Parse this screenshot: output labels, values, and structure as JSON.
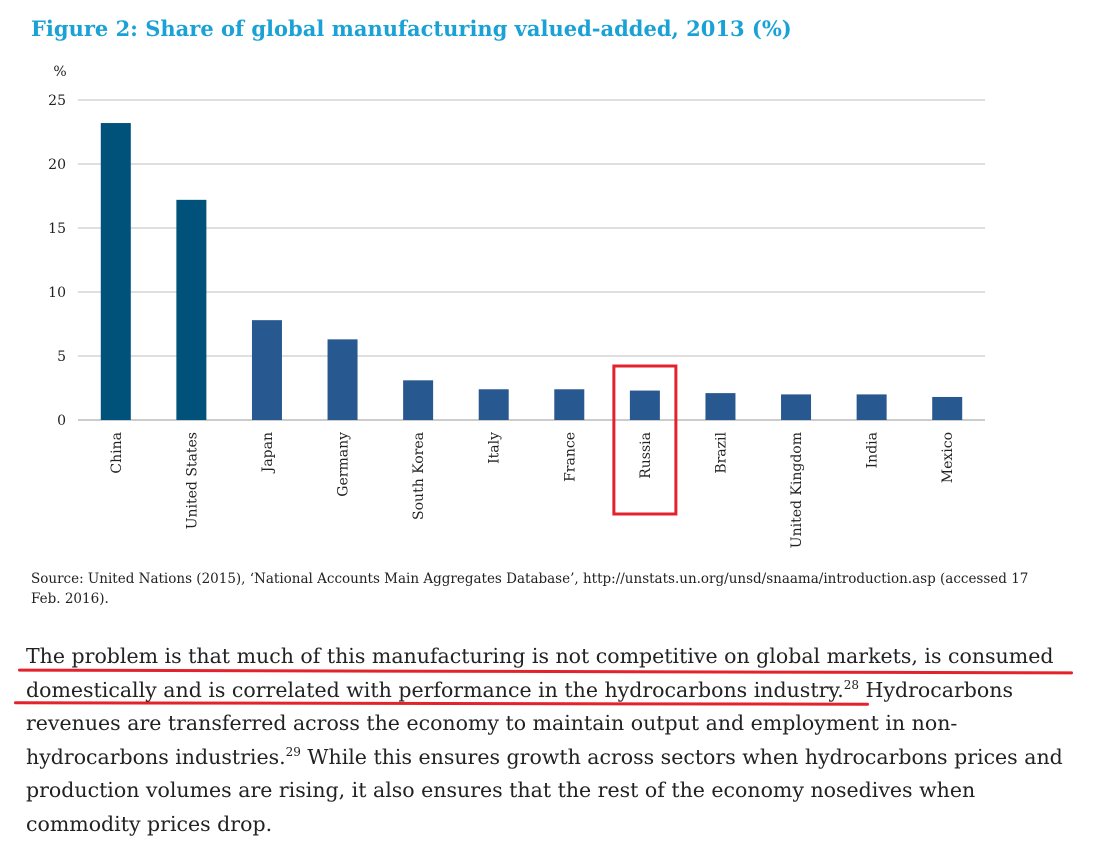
{
  "figure": {
    "title": "Figure 2: Share of global manufacturing valued-added, 2013 (%)",
    "source": "Source: United Nations (2015), ‘National Accounts Main Aggregates Database’, http://unstats.un.org/unsd/snaama/introduction.asp (accessed 17 Feb. 2016)."
  },
  "chart_data": {
    "type": "bar",
    "ylabel": "%",
    "ylim": [
      0,
      25
    ],
    "yticks": [
      0,
      5,
      10,
      15,
      20,
      25
    ],
    "grid": true,
    "categories": [
      "China",
      "United States",
      "Japan",
      "Germany",
      "South Korea",
      "Italy",
      "France",
      "Russia",
      "Brazil",
      "United Kingdom",
      "India",
      "Mexico"
    ],
    "values": [
      23.2,
      17.2,
      7.8,
      6.3,
      3.1,
      2.4,
      2.4,
      2.3,
      2.1,
      2.0,
      2.0,
      1.8
    ],
    "highlighted_category": "Russia",
    "colors": {
      "dark": "#00527a",
      "mid": "#27588f",
      "highlight": "#e3222b",
      "grid": "#bfbfbf"
    }
  },
  "article": {
    "highlighted_sentence": "The problem is that much of this manufacturing is not competitive on global markets, is consumed domestically and is correlated with performance in the hydrocarbons industry.",
    "footnote_1": "28",
    "sentence_2": " Hydrocarbons revenues are transferred across the economy to maintain output and employment in non-hydrocarbons industries.",
    "footnote_2": "29",
    "sentence_3": " While this ensures growth across sectors when hydrocarbons prices and production volumes are rising, it also ensures that the rest of the economy nosedives when commodity prices drop."
  }
}
